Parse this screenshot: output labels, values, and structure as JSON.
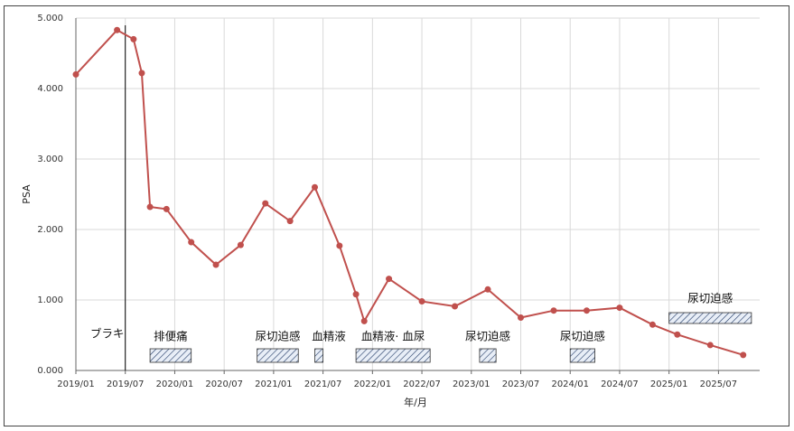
{
  "chart_data": {
    "type": "line",
    "xlabel": "年/月",
    "ylabel": "PSA",
    "x": [
      "2019/01",
      "2019/06",
      "2019/08",
      "2019/09",
      "2019/10",
      "2019/12",
      "2020/03",
      "2020/06",
      "2020/09",
      "2020/12",
      "2021/03",
      "2021/06",
      "2021/09",
      "2021/11",
      "2021/12",
      "2022/03",
      "2022/07",
      "2022/11",
      "2023/03",
      "2023/07",
      "2023/11",
      "2024/03",
      "2024/07",
      "2024/11",
      "2025/02",
      "2025/06",
      "2025/10"
    ],
    "series": [
      {
        "color": "#c0504d",
        "values": [
          4.2,
          4.83,
          4.7,
          4.22,
          2.32,
          2.29,
          1.82,
          1.5,
          1.78,
          2.37,
          2.12,
          2.6,
          1.77,
          1.08,
          0.7,
          1.3,
          0.98,
          0.91,
          1.15,
          0.75,
          0.85,
          0.85,
          0.89,
          0.65,
          0.51,
          0.36,
          0.22
        ]
      }
    ],
    "xlim": [
      "2019/01",
      "2025/12"
    ],
    "xticks": [
      "2019/01",
      "2019/07",
      "2020/01",
      "2020/07",
      "2021/01",
      "2021/07",
      "2022/01",
      "2022/07",
      "2023/01",
      "2023/07",
      "2024/01",
      "2024/07",
      "2025/01",
      "2025/07"
    ],
    "ylim": [
      0,
      5
    ],
    "yticks": [
      {
        "value": 0,
        "label": "0.000"
      },
      {
        "value": 1,
        "label": "1.000"
      },
      {
        "value": 2,
        "label": "2.000"
      },
      {
        "value": 3,
        "label": "3.000"
      },
      {
        "value": 4,
        "label": "4.000"
      },
      {
        "value": 5,
        "label": "5.000"
      }
    ],
    "grid": true,
    "annotations": [
      {
        "label": "ブラキ",
        "x": "2019/07"
      }
    ],
    "periods": [
      {
        "label": "排便痛",
        "start": "2019/10",
        "end": "2020/03"
      },
      {
        "label": "尿切迫感",
        "start": "2020/11",
        "end": "2021/04"
      },
      {
        "label": "血精液",
        "start": "2021/06",
        "end": "2021/07"
      },
      {
        "label": "血精液· 血尿",
        "start": "2021/11",
        "end": "2022/08"
      },
      {
        "label": "尿切迫感",
        "start": "2023/02",
        "end": "2023/04"
      },
      {
        "label": "尿切迫感",
        "start": "2024/01",
        "end": "2024/04"
      },
      {
        "label": "尿切迫感",
        "start": "2025/01",
        "end": "2025/11"
      }
    ]
  }
}
